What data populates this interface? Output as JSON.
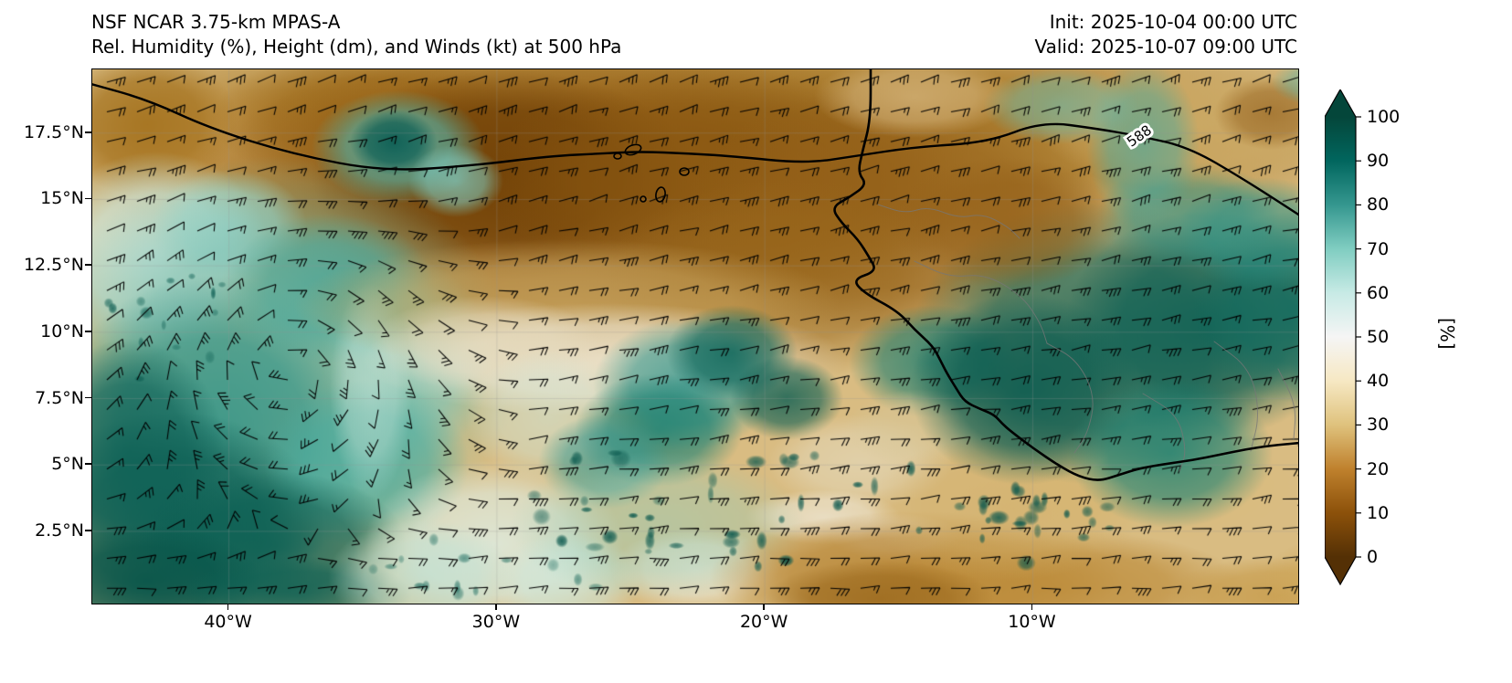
{
  "header": {
    "title_line1": "NSF NCAR 3.75-km MPAS-A",
    "title_line2": "Rel. Humidity (%), Height (dm), and Winds (kt) at 500 hPa",
    "init_label": "Init: 2025-10-04 00:00 UTC",
    "valid_label": "Valid: 2025-10-07 09:00 UTC"
  },
  "map": {
    "y_ticks": [
      "17.5°N",
      "15°N",
      "12.5°N",
      "10°N",
      "7.5°N",
      "5°N",
      "2.5°N"
    ],
    "x_ticks": [
      "40°W",
      "30°W",
      "20°W",
      "10°W"
    ],
    "contour_label": "588"
  },
  "colorbar": {
    "ticks": [
      "100",
      "90",
      "80",
      "70",
      "60",
      "50",
      "40",
      "30",
      "20",
      "10",
      "0"
    ],
    "label": "[%]",
    "colors": [
      "#003c30",
      "#01665e",
      "#35978f",
      "#80cdc1",
      "#c7eae5",
      "#f5f5f5",
      "#f6e8c3",
      "#dfc27d",
      "#bf812d",
      "#8c510a",
      "#543005"
    ]
  },
  "chart_data": {
    "type": "heatmap",
    "model": "NSF NCAR 3.75-km MPAS-A",
    "title": "Rel. Humidity (%), Height (dm), and Winds (kt) at 500 hPa",
    "init": "2025-10-04 00:00 UTC",
    "valid": "2025-10-07 09:00 UTC",
    "x_axis": {
      "ticks": [
        "40°W",
        "30°W",
        "20°W",
        "10°W"
      ],
      "approx_range": "46°W to 0°"
    },
    "y_axis": {
      "ticks": [
        "17.5°N",
        "15°N",
        "12.5°N",
        "10°N",
        "7.5°N",
        "5°N",
        "2.5°N"
      ],
      "approx_range": "0°N to 20°N"
    },
    "colorbar": {
      "label": "[%]",
      "min": 0,
      "max": 100,
      "ticks": [
        100,
        90,
        80,
        70,
        60,
        50,
        40,
        30,
        20,
        10,
        0
      ],
      "colormap": "brown-white-teal diverging (BrBG-like), extended both ends"
    },
    "height_contour_labeled_dm": 588,
    "wind_depiction": "wind barbs (kt) on regular grid",
    "field_description": "500 hPa relative humidity shaded: dry (brown) Saharan air across the north-center, moist (teal) cyclonic swirl in the west-central Atlantic, moist air mass over West Africa, dry band along the southern edge"
  }
}
